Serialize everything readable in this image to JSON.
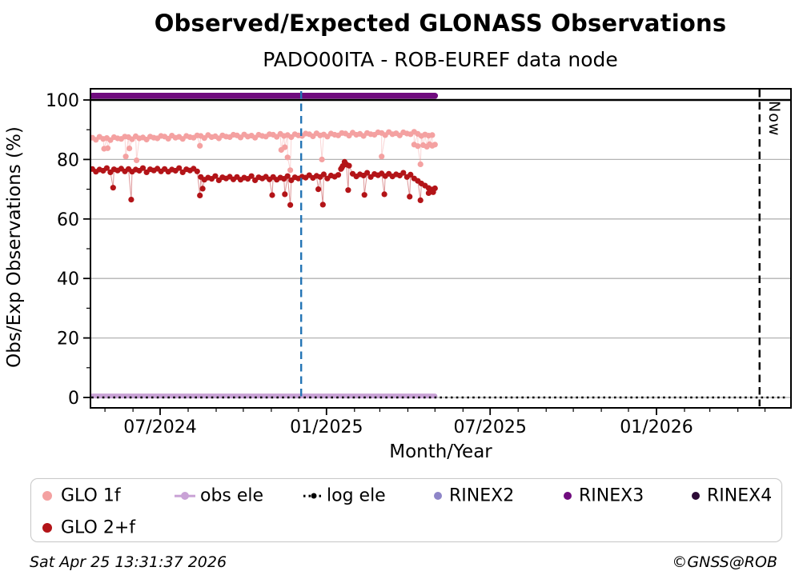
{
  "header": {
    "title": "Observed/Expected GLONASS Observations",
    "subtitle": "PADO00ITA - ROB-EUREF data node"
  },
  "footer": {
    "timestamp": "Sat Apr 25 13:31:37 2026",
    "credit": "©GNSS@ROB"
  },
  "colors": {
    "glo1f": "#f4a1a1",
    "glo2f": "#b31418",
    "obs_ele": "#c9a2d6",
    "log_ele": "#000000",
    "rinex2": "#8e85c8",
    "rinex3": "#700c7e",
    "rinex4": "#2c0b36",
    "event_line": "#2374b5",
    "now_line": "#000000",
    "grid": "#b3b3b3"
  },
  "legend": {
    "items": [
      {
        "id": "glo-1f",
        "label": "GLO 1f",
        "marker": "dot",
        "color": "#f4a1a1",
        "size": 12
      },
      {
        "id": "obs-ele",
        "label": "obs ele",
        "marker": "line-dot",
        "color": "#c9a2d6",
        "size": 10
      },
      {
        "id": "log-ele",
        "label": "log ele",
        "marker": "dotted-dot",
        "color": "#000000",
        "size": 7
      },
      {
        "id": "rinex2",
        "label": "RINEX2",
        "marker": "dot",
        "color": "#8e85c8",
        "size": 10
      },
      {
        "id": "rinex3",
        "label": "RINEX3",
        "marker": "dot",
        "color": "#700c7e",
        "size": 10
      },
      {
        "id": "rinex4",
        "label": "RINEX4",
        "marker": "dot",
        "color": "#2c0b36",
        "size": 10
      },
      {
        "id": "glo-2f",
        "label": "GLO 2+f",
        "marker": "dot",
        "color": "#b31418",
        "size": 12
      }
    ]
  },
  "chart_data": {
    "type": "scatter",
    "title": "Observed/Expected GLONASS Observations",
    "subtitle": "PADO00ITA - ROB-EUREF data node",
    "xlabel": "Month/Year",
    "ylabel": "Obs/Exp Observations (%)",
    "xlim": [
      "2024-04-15",
      "2026-05-28"
    ],
    "ylim": [
      -3.5,
      103.8
    ],
    "grid": "horizontal",
    "legend_position": "bottom",
    "yticks": [
      0,
      20,
      40,
      60,
      80,
      100
    ],
    "yticks_minor": [
      10,
      30,
      50,
      70,
      90
    ],
    "xticks": [
      {
        "date": "2024-07-01",
        "label": "07/2024"
      },
      {
        "date": "2025-01-01",
        "label": "01/2025"
      },
      {
        "date": "2025-07-01",
        "label": "07/2025"
      },
      {
        "date": "2026-01-01",
        "label": "01/2026"
      }
    ],
    "reference_lines": [
      {
        "axis": "y",
        "value": 100,
        "style": "solid",
        "color": "#000000",
        "width": 2.6
      }
    ],
    "event_lines": [
      {
        "date": "2024-12-04",
        "style": "dashed",
        "color": "#2374b5",
        "label": ""
      },
      {
        "date": "2026-04-25",
        "style": "dashed",
        "color": "#000000",
        "label": "Now"
      }
    ],
    "series": [
      {
        "name": "GLO 1f",
        "type": "scatter-line",
        "color": "#f4a1a1",
        "marker_r": 3.6,
        "start": "2024-04-17",
        "step_days": 4,
        "values": [
          87.3,
          86.6,
          87.6,
          86.9,
          87.2,
          86.5,
          87.5,
          87.1,
          86.9,
          87.7,
          87.5,
          86.8,
          87.8,
          87.1,
          87.4,
          86.7,
          87.7,
          87.3,
          87.1,
          87.9,
          87.7,
          87.0,
          88.0,
          87.3,
          87.6,
          86.9,
          87.9,
          87.5,
          87.3,
          88.1,
          87.9,
          87.2,
          88.2,
          87.5,
          87.8,
          87.1,
          88.1,
          87.7,
          87.5,
          88.3,
          88.1,
          87.4,
          88.4,
          87.7,
          88.0,
          87.3,
          88.3,
          87.9,
          87.7,
          88.5,
          88.3,
          87.6,
          88.6,
          87.9,
          88.2,
          87.5,
          88.5,
          88.1,
          87.9,
          88.7,
          88.5,
          87.8,
          88.8,
          88.1,
          88.4,
          87.7,
          88.7,
          88.3,
          88.1,
          88.9,
          88.7,
          88.0,
          89.0,
          88.3,
          88.6,
          87.9,
          88.9,
          88.5,
          88.3,
          89.1,
          88.9,
          88.2,
          89.2,
          88.5,
          88.8,
          88.1,
          89.1,
          88.7,
          88.5,
          89.3,
          88.6,
          87.9,
          88.4,
          88.0,
          88.2
        ],
        "outliers": [
          [
            "2024-04-30",
            83.6
          ],
          [
            "2024-05-04",
            83.8
          ],
          [
            "2024-05-24",
            81.0
          ],
          [
            "2024-05-28",
            83.7
          ],
          [
            "2024-06-05",
            79.7
          ],
          [
            "2024-08-14",
            84.6
          ],
          [
            "2024-11-12",
            83.2
          ],
          [
            "2024-11-16",
            84.1
          ],
          [
            "2024-11-19",
            80.7
          ],
          [
            "2024-11-22",
            76.4
          ],
          [
            "2024-12-27",
            80.0
          ],
          [
            "2025-03-03",
            81.0
          ],
          [
            "2025-04-08",
            85.0
          ],
          [
            "2025-04-12",
            84.5
          ],
          [
            "2025-04-15",
            78.4
          ],
          [
            "2025-04-18",
            84.8
          ],
          [
            "2025-04-22",
            84.3
          ],
          [
            "2025-04-25",
            85.1
          ],
          [
            "2025-04-28",
            84.6
          ],
          [
            "2025-05-01",
            85.0
          ]
        ]
      },
      {
        "name": "GLO 2+f",
        "type": "scatter-line",
        "color": "#b31418",
        "marker_r": 3.6,
        "start": "2024-04-17",
        "step_days": 4,
        "values": [
          76.8,
          75.9,
          76.6,
          76.2,
          77.1,
          75.7,
          76.7,
          76.3,
          76.9,
          76.0,
          76.8,
          75.9,
          76.6,
          76.2,
          77.1,
          75.7,
          76.7,
          76.3,
          76.9,
          76.0,
          76.8,
          75.9,
          76.6,
          76.2,
          77.1,
          75.7,
          76.7,
          76.3,
          76.9,
          76.0,
          74.1,
          73.2,
          73.9,
          73.5,
          74.4,
          73.0,
          74.0,
          73.6,
          74.2,
          73.3,
          74.1,
          73.2,
          73.9,
          73.5,
          74.4,
          73.0,
          74.0,
          73.6,
          74.2,
          73.3,
          74.1,
          73.2,
          73.9,
          73.5,
          74.4,
          73.0,
          74.0,
          73.6,
          74.2,
          73.9,
          74.7,
          73.8,
          74.5,
          74.1,
          75.0,
          73.6,
          74.6,
          74.2,
          74.8,
          77.2,
          78.6,
          77.9,
          75.2,
          74.3,
          75.0,
          74.6,
          75.5,
          74.1,
          75.1,
          74.7,
          75.3,
          74.4,
          75.2,
          74.3,
          75.0,
          74.6,
          75.5,
          74.1,
          74.9,
          73.6,
          72.8,
          71.9,
          71.2,
          70.4,
          69.9
        ],
        "outliers": [
          [
            "2024-05-10",
            70.5
          ],
          [
            "2024-05-30",
            66.5
          ],
          [
            "2024-08-14",
            67.9
          ],
          [
            "2024-08-17",
            70.2
          ],
          [
            "2024-11-02",
            68.0
          ],
          [
            "2024-11-16",
            68.3
          ],
          [
            "2024-11-22",
            64.7
          ],
          [
            "2024-12-23",
            70.0
          ],
          [
            "2024-12-28",
            64.8
          ],
          [
            "2025-01-17",
            76.8
          ],
          [
            "2025-01-19",
            77.8
          ],
          [
            "2025-01-21",
            79.2
          ],
          [
            "2025-01-23",
            78.3
          ],
          [
            "2025-01-25",
            69.7
          ],
          [
            "2025-02-12",
            68.1
          ],
          [
            "2025-03-06",
            68.3
          ],
          [
            "2025-04-03",
            67.5
          ],
          [
            "2025-04-15",
            66.3
          ],
          [
            "2025-04-24",
            68.7
          ],
          [
            "2025-04-29",
            69.0
          ],
          [
            "2025-05-01",
            70.3
          ]
        ]
      },
      {
        "name": "obs ele",
        "type": "line",
        "color": "#c9a2d6",
        "y": 0.5,
        "from": "2024-04-17",
        "to": "2025-05-01",
        "width": 6
      },
      {
        "name": "log ele",
        "type": "dotted-line",
        "color": "#000000",
        "y": 0,
        "from": "2024-04-16",
        "to": "2026-05-25",
        "width": 2.6
      },
      {
        "name": "RINEX2",
        "type": "legend-only",
        "color": "#8e85c8"
      },
      {
        "name": "RINEX3",
        "type": "line",
        "color": "#700c7e",
        "y": 101.4,
        "from": "2024-04-17",
        "to": "2025-05-01",
        "width": 7.5
      },
      {
        "name": "RINEX4",
        "type": "legend-only",
        "color": "#2c0b36"
      }
    ]
  }
}
